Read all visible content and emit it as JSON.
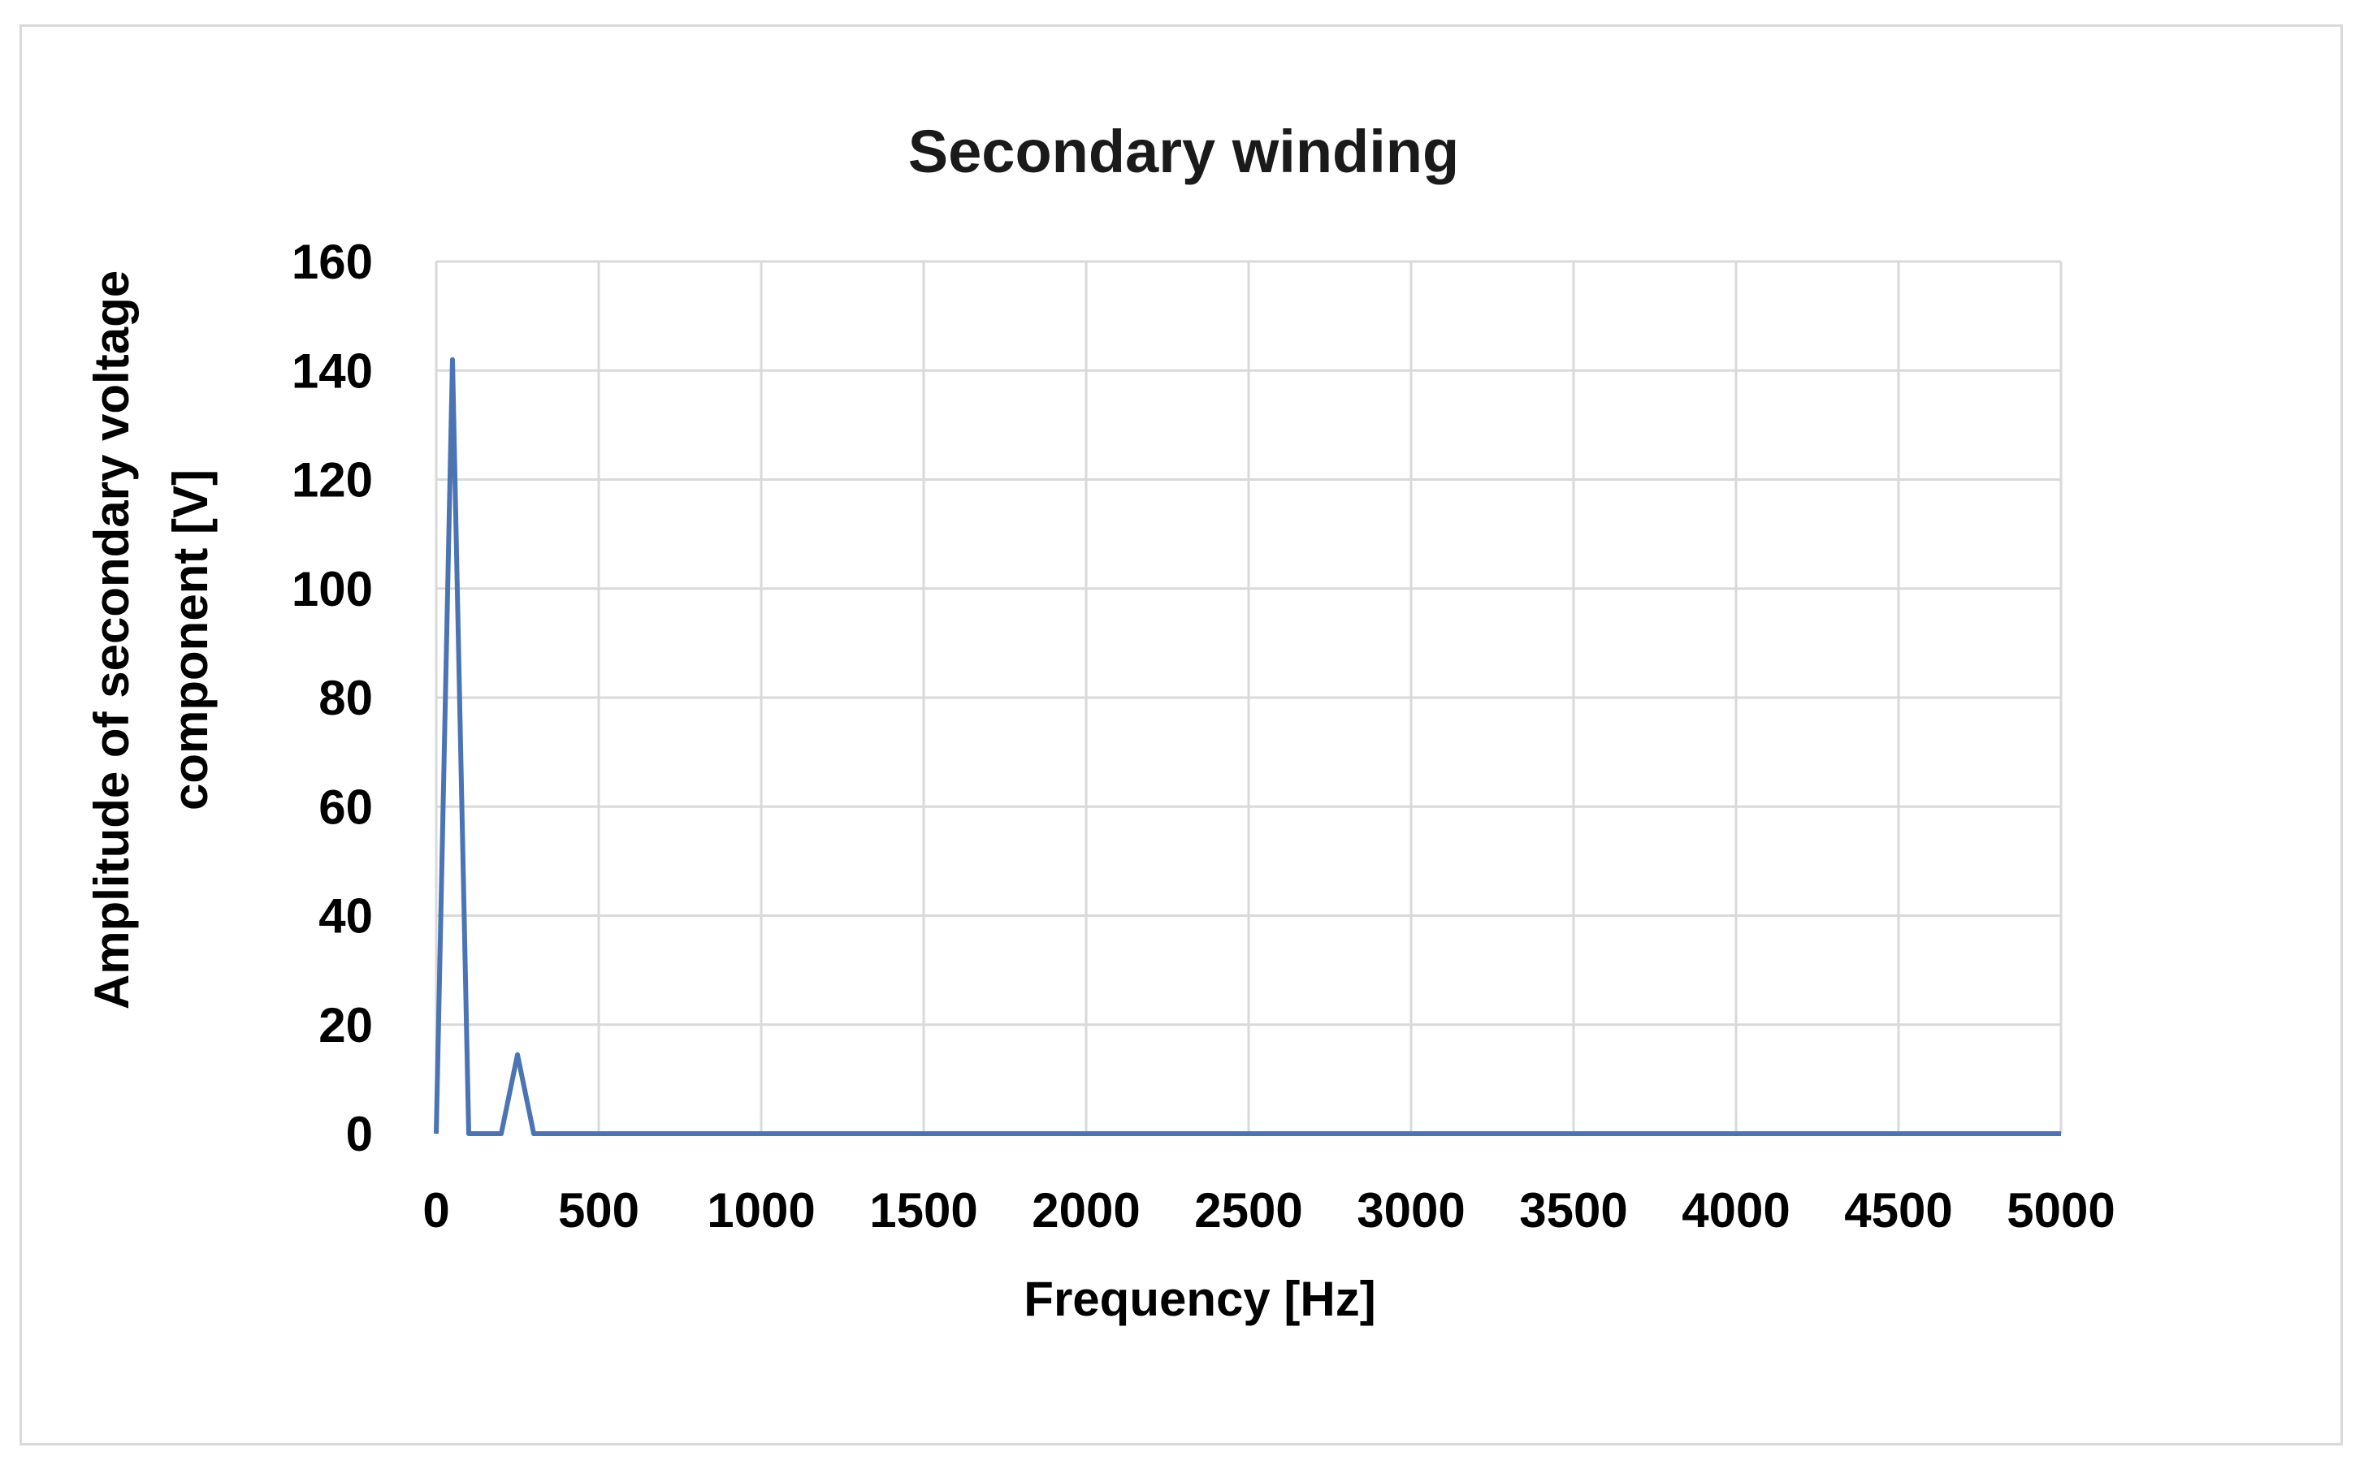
{
  "chart_data": {
    "type": "line",
    "title": "Secondary winding",
    "xlabel": "Frequency [Hz]",
    "ylabel_lines": [
      "Amplitude of secondary voltage",
      "component [V]"
    ],
    "xlim": [
      0,
      5000
    ],
    "ylim": [
      0,
      160
    ],
    "x_ticks": [
      0,
      500,
      1000,
      1500,
      2000,
      2500,
      3000,
      3500,
      4000,
      4500,
      5000
    ],
    "y_ticks": [
      0,
      20,
      40,
      60,
      80,
      100,
      120,
      140,
      160
    ],
    "grid": true,
    "legend": "none",
    "series": [
      {
        "color": "#4a74b4",
        "x": [
          0,
          50,
          100,
          150,
          200,
          250,
          300,
          350,
          400,
          450,
          500,
          1000,
          1500,
          2000,
          2500,
          3000,
          3500,
          4000,
          4500,
          5000
        ],
        "y": [
          0,
          142,
          0,
          0,
          0,
          14.5,
          0,
          0,
          0,
          0,
          0,
          0,
          0,
          0,
          0,
          0,
          0,
          0,
          0,
          0
        ]
      }
    ]
  }
}
